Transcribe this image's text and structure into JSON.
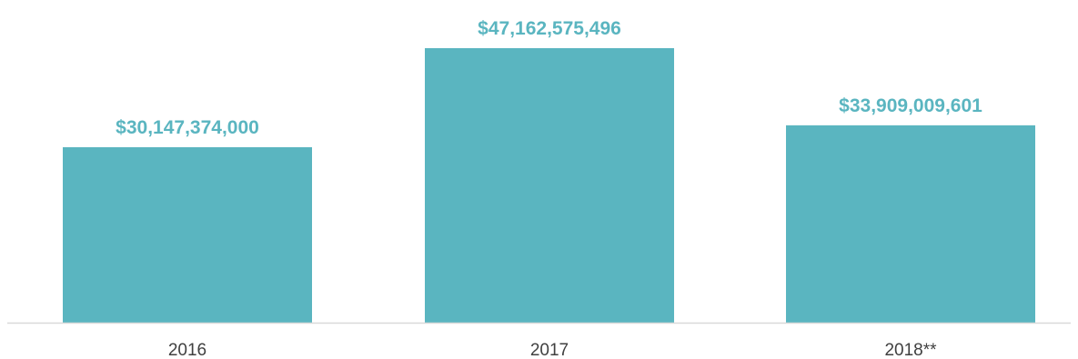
{
  "chart_data": {
    "type": "bar",
    "title": "",
    "xlabel": "",
    "ylabel": "",
    "categories": [
      "2016",
      "2017",
      "2018**"
    ],
    "values": [
      30147374000,
      47162575496,
      33909009601
    ],
    "data_labels": [
      "$30,147,374,000",
      "$47,162,575,496",
      "$33,909,009,601"
    ],
    "ylim": [
      0,
      52000000000
    ],
    "grid": false,
    "legend": "none",
    "colors": {
      "bar": "#5ab5c0",
      "data_label": "#5ab5c0",
      "axis": "#d9d9d9",
      "tick_label": "#404040"
    }
  }
}
